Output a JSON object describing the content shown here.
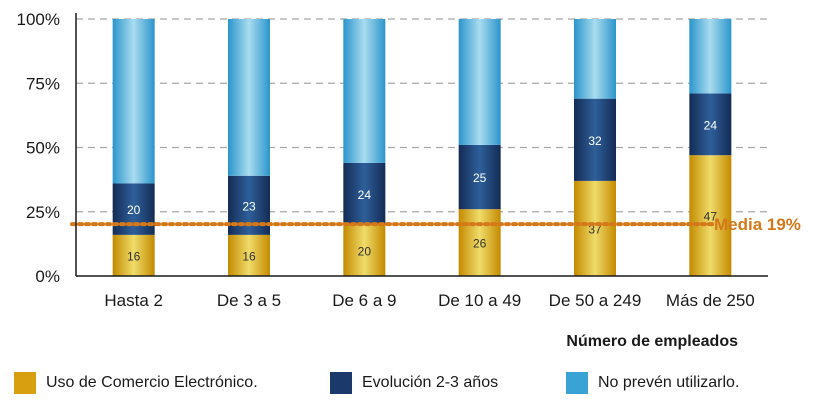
{
  "chart_data": {
    "type": "bar",
    "stacked": true,
    "categories": [
      "Hasta 2",
      "De 3 a 5",
      "De 6 a 9",
      "De 10 a 49",
      "De 50 a 249",
      "Más de 250"
    ],
    "series": [
      {
        "name": "Uso de Comercio Electrónico.",
        "values": [
          16,
          16,
          20,
          26,
          37,
          47
        ],
        "color": "#d89f10"
      },
      {
        "name": "Evolución 2-3 años",
        "values": [
          20,
          23,
          24,
          25,
          32,
          24
        ],
        "color": "#1b3a6b"
      },
      {
        "name": "No prevén utilizarlo.",
        "values": [
          64,
          61,
          56,
          49,
          31,
          29
        ],
        "color": "#3aa3d6"
      }
    ],
    "data_labels": {
      "series0": [
        "16",
        "16",
        "20",
        "26",
        "37",
        "47"
      ],
      "series1": [
        "20",
        "23",
        "24",
        "25",
        "32",
        "24"
      ]
    },
    "yticks": [
      "0%",
      "25%",
      "50%",
      "75%",
      "100%"
    ],
    "ylim": [
      0,
      100
    ],
    "xlabel": "Número de empleados",
    "reference_line": {
      "value": 19,
      "label": "Media 19%",
      "color": "#d4781a"
    },
    "grid": true,
    "legend_position": "bottom"
  }
}
